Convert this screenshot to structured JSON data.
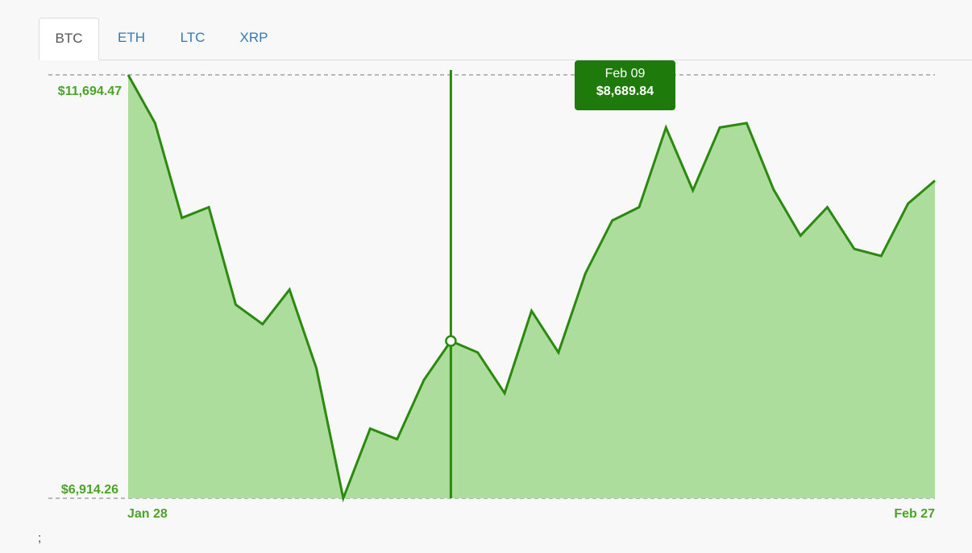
{
  "tabs": [
    {
      "label": "BTC",
      "active": true
    },
    {
      "label": "ETH",
      "active": false
    },
    {
      "label": "LTC",
      "active": false
    },
    {
      "label": "XRP",
      "active": false
    }
  ],
  "tooltip": {
    "date": "Feb 09",
    "value": "$8,689.84"
  },
  "footer_text": ";",
  "colors": {
    "line": "#2a8a0e",
    "area": "#addd9c",
    "label": "#4aa428",
    "tooltip_bg": "#1e7a0a"
  },
  "chart_data": {
    "type": "area",
    "series": [
      {
        "values": [
          11694.47,
          11150,
          10080,
          10200,
          9100,
          8880,
          9270,
          8380,
          6914.26,
          7700,
          7580,
          8250,
          8689.84,
          8560,
          8100,
          9030,
          8560,
          9450,
          10050,
          10200,
          11100,
          10390,
          11100,
          11150,
          10400,
          9880,
          10200,
          9730,
          9650,
          10240,
          10500
        ]
      }
    ],
    "y_labels": {
      "max": "$11,694.47",
      "min": "$6,914.26"
    },
    "x_labels": {
      "start": "Jan 28",
      "end": "Feb 27"
    },
    "ylim": [
      6914.26,
      11694.47
    ],
    "highlight_index": 12,
    "grid": false
  }
}
